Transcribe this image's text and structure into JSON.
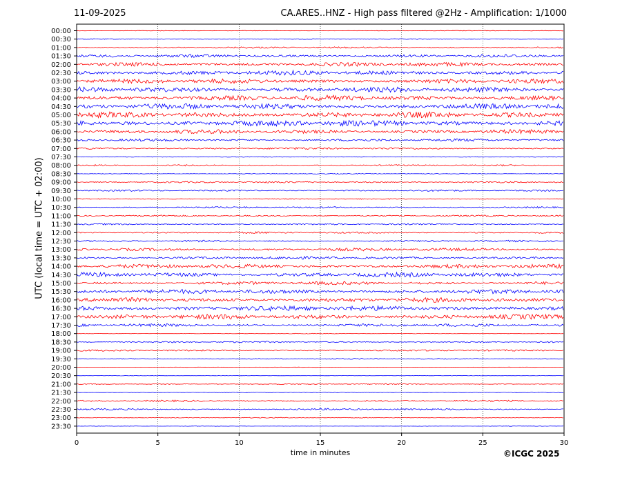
{
  "header": {
    "date": "11-09-2025",
    "title": "CA.ARES..HNZ - High pass filtered @2Hz - Amplification: 1/1000"
  },
  "footer": {
    "copyright": "©ICGC 2025"
  },
  "chart_data": {
    "type": "line",
    "title": "CA.ARES..HNZ - High pass filtered @2Hz - Amplification: 1/1000",
    "xlabel": "time in minutes",
    "ylabel": "UTC (local time = UTC + 02:00)",
    "xlim": [
      0,
      30
    ],
    "xticks": [
      0,
      5,
      10,
      15,
      20,
      25,
      30
    ],
    "grid": "vertical dotted lines at x ticks",
    "trace_colors": [
      "#ff0000",
      "#0000ff"
    ],
    "rows": [
      {
        "label": "00:00",
        "amplitude": 0.3
      },
      {
        "label": "00:30",
        "amplitude": 0.4
      },
      {
        "label": "01:00",
        "amplitude": 0.9
      },
      {
        "label": "01:30",
        "amplitude": 1.6
      },
      {
        "label": "02:00",
        "amplitude": 2.2
      },
      {
        "label": "02:30",
        "amplitude": 2.5
      },
      {
        "label": "03:00",
        "amplitude": 2.4
      },
      {
        "label": "03:30",
        "amplitude": 2.8
      },
      {
        "label": "04:00",
        "amplitude": 2.8
      },
      {
        "label": "04:30",
        "amplitude": 3.0
      },
      {
        "label": "05:00",
        "amplitude": 3.0
      },
      {
        "label": "05:30",
        "amplitude": 3.2
      },
      {
        "label": "06:00",
        "amplitude": 2.2
      },
      {
        "label": "06:30",
        "amplitude": 1.4
      },
      {
        "label": "07:00",
        "amplitude": 1.1
      },
      {
        "label": "07:30",
        "amplitude": 0.4
      },
      {
        "label": "08:00",
        "amplitude": 0.8
      },
      {
        "label": "08:30",
        "amplitude": 0.4
      },
      {
        "label": "09:00",
        "amplitude": 0.9
      },
      {
        "label": "09:30",
        "amplitude": 0.9
      },
      {
        "label": "10:00",
        "amplitude": 0.5
      },
      {
        "label": "10:30",
        "amplitude": 0.9
      },
      {
        "label": "11:00",
        "amplitude": 0.8
      },
      {
        "label": "11:30",
        "amplitude": 0.8
      },
      {
        "label": "12:00",
        "amplitude": 1.0
      },
      {
        "label": "12:30",
        "amplitude": 0.9
      },
      {
        "label": "13:00",
        "amplitude": 1.6
      },
      {
        "label": "13:30",
        "amplitude": 1.5
      },
      {
        "label": "14:00",
        "amplitude": 2.2
      },
      {
        "label": "14:30",
        "amplitude": 2.4
      },
      {
        "label": "15:00",
        "amplitude": 1.8
      },
      {
        "label": "15:30",
        "amplitude": 2.3
      },
      {
        "label": "16:00",
        "amplitude": 2.4
      },
      {
        "label": "16:30",
        "amplitude": 2.8
      },
      {
        "label": "17:00",
        "amplitude": 2.6
      },
      {
        "label": "17:30",
        "amplitude": 1.6
      },
      {
        "label": "18:00",
        "amplitude": 0.3
      },
      {
        "label": "18:30",
        "amplitude": 0.8
      },
      {
        "label": "19:00",
        "amplitude": 0.9
      },
      {
        "label": "19:30",
        "amplitude": 0.6
      },
      {
        "label": "20:00",
        "amplitude": 0.2
      },
      {
        "label": "20:30",
        "amplitude": 0.2
      },
      {
        "label": "21:00",
        "amplitude": 0.5
      },
      {
        "label": "21:30",
        "amplitude": 0.3
      },
      {
        "label": "22:00",
        "amplitude": 0.9
      },
      {
        "label": "22:30",
        "amplitude": 1.0
      },
      {
        "label": "23:00",
        "amplitude": 0.4
      },
      {
        "label": "23:30",
        "amplitude": 0.2
      }
    ]
  }
}
